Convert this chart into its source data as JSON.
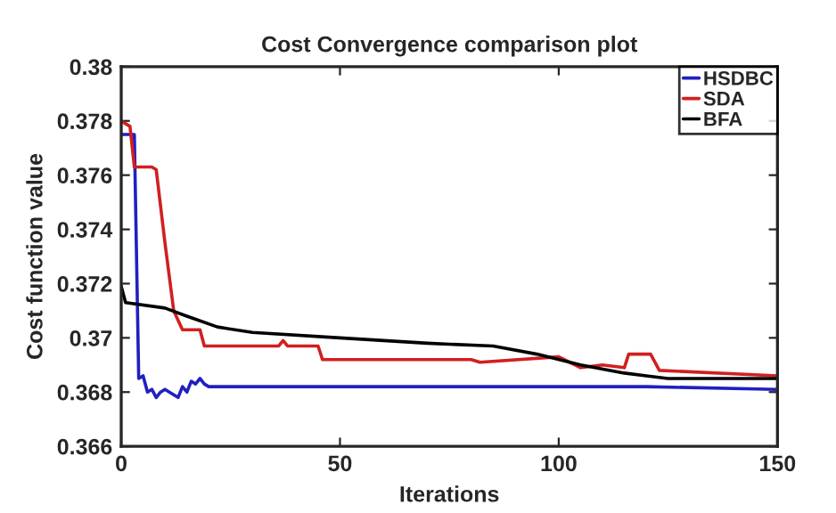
{
  "chart_data": {
    "type": "line",
    "title": "Cost Convergence comparison plot",
    "xlabel": "Iterations",
    "ylabel": "Cost function value",
    "xlim": [
      0,
      150
    ],
    "ylim": [
      0.366,
      0.38
    ],
    "xticks": [
      0,
      50,
      100,
      150
    ],
    "yticks": [
      0.366,
      0.368,
      0.37,
      0.372,
      0.374,
      0.376,
      0.378,
      0.38
    ],
    "grid": false,
    "legend": "top right",
    "series": [
      {
        "name": "HSDBC",
        "color": "#2020c0",
        "x": [
          0,
          3,
          4,
          5,
          6,
          7,
          8,
          9,
          10,
          11,
          12,
          13,
          14,
          15,
          16,
          17,
          18,
          19,
          20,
          30,
          50,
          80,
          100,
          120,
          150
        ],
        "values": [
          0.3775,
          0.3775,
          0.3685,
          0.3686,
          0.368,
          0.3681,
          0.3678,
          0.368,
          0.3681,
          0.368,
          0.3679,
          0.3678,
          0.3682,
          0.368,
          0.3684,
          0.3683,
          0.3685,
          0.3683,
          0.3682,
          0.3682,
          0.3682,
          0.3682,
          0.3682,
          0.3682,
          0.3681
        ]
      },
      {
        "name": "SDA",
        "color": "#d02020",
        "x": [
          0,
          2,
          3,
          7,
          8,
          10,
          12,
          14,
          18,
          19,
          36,
          37,
          38,
          45,
          46,
          80,
          82,
          100,
          105,
          110,
          115,
          116,
          121,
          123,
          150
        ],
        "values": [
          0.378,
          0.3778,
          0.3763,
          0.3763,
          0.3762,
          0.3735,
          0.371,
          0.3703,
          0.3703,
          0.3697,
          0.3697,
          0.3699,
          0.3697,
          0.3697,
          0.3692,
          0.3692,
          0.3691,
          0.3693,
          0.3689,
          0.369,
          0.3689,
          0.3694,
          0.3694,
          0.3688,
          0.3686
        ]
      },
      {
        "name": "BFA",
        "color": "#000000",
        "x": [
          0,
          1,
          10,
          15,
          22,
          30,
          50,
          70,
          85,
          95,
          105,
          115,
          120,
          125,
          150
        ],
        "values": [
          0.3719,
          0.3713,
          0.3711,
          0.3708,
          0.3704,
          0.3702,
          0.37,
          0.3698,
          0.3697,
          0.3694,
          0.369,
          0.3687,
          0.3686,
          0.3685,
          0.3685
        ]
      }
    ]
  }
}
